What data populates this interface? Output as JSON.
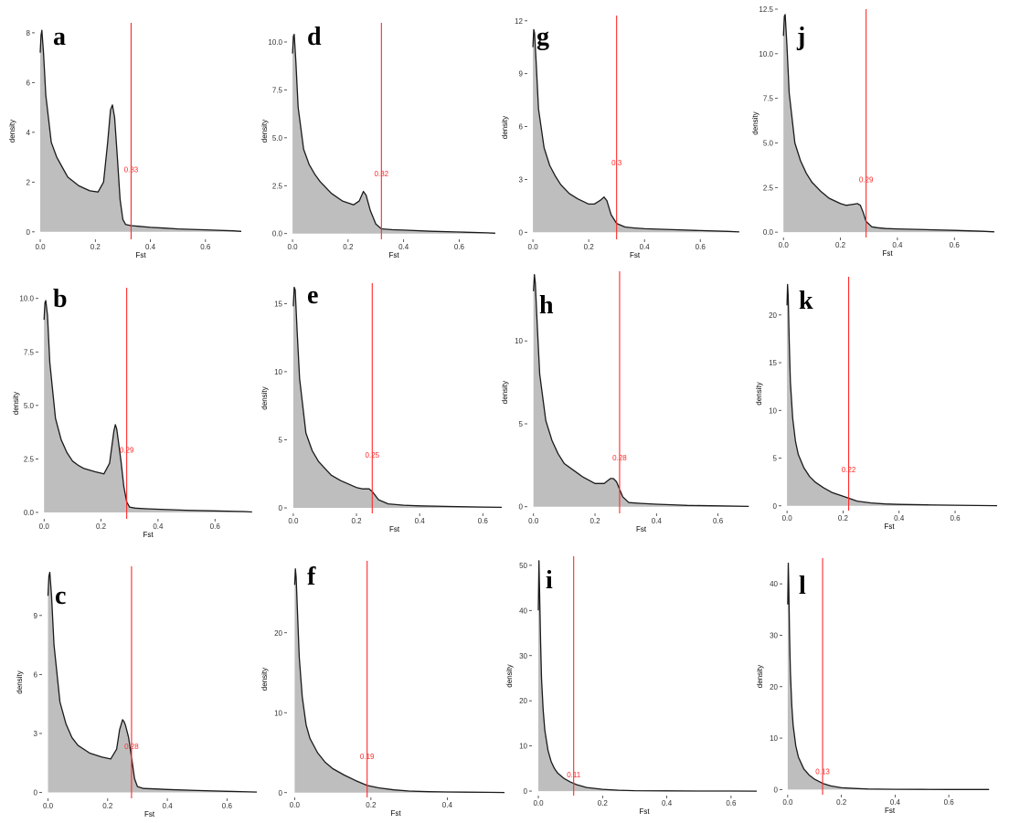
{
  "figure": {
    "background": "#ffffff",
    "fill_color": "#bebebe",
    "curve_color": "#1a1a1a",
    "threshold_color": "#ff2a2a"
  },
  "chart_data": [
    {
      "letter": "a",
      "type": "area",
      "xlabel": "Fst",
      "ylabel": "density",
      "xlim": [
        -0.02,
        0.75
      ],
      "ylim": [
        -0.3,
        8.4
      ],
      "x_ticks": [
        {
          "v": 0,
          "label": "0.0"
        },
        {
          "v": 0.2,
          "label": "0.2"
        },
        {
          "v": 0.4,
          "label": "0.4"
        },
        {
          "v": 0.6,
          "label": "0.6"
        }
      ],
      "y_ticks": [
        {
          "v": 0,
          "label": "0"
        },
        {
          "v": 2,
          "label": "2"
        },
        {
          "v": 4,
          "label": "4"
        },
        {
          "v": 6,
          "label": "6"
        },
        {
          "v": 8,
          "label": "8"
        }
      ],
      "threshold": 0.33,
      "threshold_label": "0.33",
      "label_y": 2.4,
      "x": [
        0,
        0.003,
        0.006,
        0.012,
        0.02,
        0.04,
        0.06,
        0.08,
        0.1,
        0.14,
        0.18,
        0.21,
        0.23,
        0.245,
        0.255,
        0.262,
        0.27,
        0.28,
        0.29,
        0.3,
        0.31,
        0.33,
        0.36,
        0.4,
        0.45,
        0.5,
        0.6,
        0.7,
        0.73
      ],
      "y": [
        7.2,
        7.9,
        8.1,
        7.2,
        5.5,
        3.6,
        3.0,
        2.6,
        2.2,
        1.85,
        1.65,
        1.6,
        2.0,
        3.6,
        4.9,
        5.1,
        4.6,
        3.0,
        1.3,
        0.5,
        0.3,
        0.25,
        0.22,
        0.18,
        0.15,
        0.12,
        0.08,
        0.04,
        0.02
      ]
    },
    {
      "letter": "b",
      "type": "area",
      "xlabel": "Fst",
      "ylabel": "density",
      "xlim": [
        -0.02,
        0.75
      ],
      "ylim": [
        -0.3,
        10.5
      ],
      "x_ticks": [
        {
          "v": 0,
          "label": "0.0"
        },
        {
          "v": 0.2,
          "label": "0.2"
        },
        {
          "v": 0.4,
          "label": "0.4"
        },
        {
          "v": 0.6,
          "label": "0.6"
        }
      ],
      "y_ticks": [
        {
          "v": 0,
          "label": "0.0"
        },
        {
          "v": 2.5,
          "label": "2.5"
        },
        {
          "v": 5,
          "label": "5.0"
        },
        {
          "v": 7.5,
          "label": "7.5"
        },
        {
          "v": 10,
          "label": "10.0"
        }
      ],
      "threshold": 0.29,
      "threshold_label": "0.29",
      "label_y": 2.8,
      "x": [
        0,
        0.003,
        0.006,
        0.012,
        0.02,
        0.04,
        0.06,
        0.08,
        0.1,
        0.12,
        0.14,
        0.18,
        0.21,
        0.23,
        0.245,
        0.25,
        0.255,
        0.26,
        0.27,
        0.28,
        0.29,
        0.3,
        0.32,
        0.36,
        0.4,
        0.5,
        0.6,
        0.7,
        0.73
      ],
      "y": [
        9.0,
        9.8,
        9.9,
        9.2,
        7.0,
        4.4,
        3.4,
        2.8,
        2.4,
        2.2,
        2.05,
        1.9,
        1.8,
        2.3,
        3.8,
        4.1,
        3.9,
        3.4,
        2.4,
        1.2,
        0.5,
        0.25,
        0.2,
        0.17,
        0.15,
        0.1,
        0.07,
        0.04,
        0.02
      ]
    },
    {
      "letter": "c",
      "type": "area",
      "xlabel": "Fst",
      "ylabel": "density",
      "xlim": [
        -0.02,
        0.7
      ],
      "ylim": [
        -0.3,
        11.5
      ],
      "x_ticks": [
        {
          "v": 0,
          "label": "0.0"
        },
        {
          "v": 0.2,
          "label": "0.2"
        },
        {
          "v": 0.4,
          "label": "0.4"
        },
        {
          "v": 0.6,
          "label": "0.6"
        }
      ],
      "y_ticks": [
        {
          "v": 0,
          "label": "0"
        },
        {
          "v": 3,
          "label": "3"
        },
        {
          "v": 6,
          "label": "6"
        },
        {
          "v": 9,
          "label": "9"
        }
      ],
      "threshold": 0.28,
      "threshold_label": "0.28",
      "label_y": 2.2,
      "x": [
        0,
        0.003,
        0.006,
        0.012,
        0.02,
        0.04,
        0.06,
        0.08,
        0.1,
        0.14,
        0.18,
        0.21,
        0.23,
        0.24,
        0.25,
        0.255,
        0.26,
        0.27,
        0.28,
        0.29,
        0.3,
        0.32,
        0.36,
        0.4,
        0.5,
        0.6,
        0.7
      ],
      "y": [
        10.0,
        11.0,
        11.2,
        10.0,
        7.5,
        4.6,
        3.5,
        2.8,
        2.4,
        2.0,
        1.8,
        1.7,
        2.2,
        3.2,
        3.7,
        3.6,
        3.4,
        2.8,
        1.8,
        0.7,
        0.3,
        0.2,
        0.18,
        0.15,
        0.1,
        0.06,
        0.02
      ]
    },
    {
      "letter": "d",
      "type": "area",
      "xlabel": "Fst",
      "ylabel": "density",
      "xlim": [
        -0.02,
        0.75
      ],
      "ylim": [
        -0.3,
        11.0
      ],
      "x_ticks": [
        {
          "v": 0,
          "label": "0.0"
        },
        {
          "v": 0.2,
          "label": "0.2"
        },
        {
          "v": 0.4,
          "label": "0.4"
        },
        {
          "v": 0.6,
          "label": "0.6"
        }
      ],
      "y_ticks": [
        {
          "v": 0,
          "label": "0.0"
        },
        {
          "v": 2.5,
          "label": "2.5"
        },
        {
          "v": 5,
          "label": "5.0"
        },
        {
          "v": 7.5,
          "label": "7.5"
        },
        {
          "v": 10,
          "label": "10.0"
        }
      ],
      "threshold": 0.32,
      "threshold_label": "0.32",
      "label_y": 3.0,
      "x": [
        0,
        0.003,
        0.006,
        0.012,
        0.02,
        0.04,
        0.06,
        0.08,
        0.1,
        0.14,
        0.18,
        0.22,
        0.24,
        0.255,
        0.265,
        0.28,
        0.3,
        0.32,
        0.36,
        0.4,
        0.5,
        0.6,
        0.7,
        0.73
      ],
      "y": [
        9.4,
        10.3,
        10.4,
        9.0,
        6.6,
        4.4,
        3.6,
        3.1,
        2.7,
        2.1,
        1.7,
        1.5,
        1.7,
        2.2,
        2.0,
        1.2,
        0.5,
        0.25,
        0.2,
        0.18,
        0.12,
        0.08,
        0.04,
        0.02
      ]
    },
    {
      "letter": "e",
      "type": "area",
      "xlabel": "Fst",
      "ylabel": "density",
      "xlim": [
        -0.02,
        0.66
      ],
      "ylim": [
        -0.4,
        16.5
      ],
      "x_ticks": [
        {
          "v": 0,
          "label": "0.0"
        },
        {
          "v": 0.2,
          "label": "0.2"
        },
        {
          "v": 0.4,
          "label": "0.4"
        },
        {
          "v": 0.6,
          "label": "0.6"
        }
      ],
      "y_ticks": [
        {
          "v": 0,
          "label": "0"
        },
        {
          "v": 5,
          "label": "5"
        },
        {
          "v": 10,
          "label": "10"
        },
        {
          "v": 15,
          "label": "15"
        }
      ],
      "threshold": 0.25,
      "threshold_label": "0.25",
      "label_y": 3.7,
      "x": [
        0,
        0.003,
        0.006,
        0.012,
        0.02,
        0.04,
        0.06,
        0.08,
        0.1,
        0.12,
        0.15,
        0.18,
        0.2,
        0.22,
        0.24,
        0.25,
        0.27,
        0.3,
        0.35,
        0.4,
        0.5,
        0.6,
        0.66
      ],
      "y": [
        14.8,
        16.2,
        16.0,
        13.0,
        9.5,
        5.5,
        4.2,
        3.4,
        2.9,
        2.4,
        2.0,
        1.7,
        1.5,
        1.4,
        1.4,
        1.2,
        0.6,
        0.3,
        0.2,
        0.15,
        0.1,
        0.06,
        0.04
      ]
    },
    {
      "letter": "f",
      "type": "area",
      "xlabel": "Fst",
      "ylabel": "density",
      "xlim": [
        -0.02,
        0.55
      ],
      "ylim": [
        -0.6,
        29.0
      ],
      "x_ticks": [
        {
          "v": 0,
          "label": "0.0"
        },
        {
          "v": 0.2,
          "label": "0.2"
        },
        {
          "v": 0.4,
          "label": "0.4"
        }
      ],
      "y_ticks": [
        {
          "v": 0,
          "label": "0"
        },
        {
          "v": 10,
          "label": "10"
        },
        {
          "v": 20,
          "label": "20"
        }
      ],
      "threshold": 0.19,
      "threshold_label": "0.19",
      "label_y": 4.2,
      "x": [
        0,
        0.002,
        0.004,
        0.008,
        0.012,
        0.02,
        0.03,
        0.04,
        0.06,
        0.08,
        0.1,
        0.13,
        0.16,
        0.19,
        0.22,
        0.26,
        0.3,
        0.35,
        0.4,
        0.5,
        0.55
      ],
      "y": [
        26.0,
        28.0,
        27.0,
        22.0,
        17.0,
        12.0,
        8.5,
        6.8,
        5.0,
        3.8,
        3.0,
        2.2,
        1.5,
        0.9,
        0.6,
        0.35,
        0.2,
        0.12,
        0.08,
        0.04,
        0.02
      ]
    },
    {
      "letter": "g",
      "type": "area",
      "xlabel": "Fst",
      "ylabel": "density",
      "xlim": [
        -0.02,
        0.75
      ],
      "ylim": [
        -0.4,
        12.3
      ],
      "x_ticks": [
        {
          "v": 0,
          "label": "0.0"
        },
        {
          "v": 0.2,
          "label": "0.2"
        },
        {
          "v": 0.4,
          "label": "0.4"
        },
        {
          "v": 0.6,
          "label": "0.6"
        }
      ],
      "y_ticks": [
        {
          "v": 0,
          "label": "0"
        },
        {
          "v": 3,
          "label": "3"
        },
        {
          "v": 6,
          "label": "6"
        },
        {
          "v": 9,
          "label": "9"
        },
        {
          "v": 12,
          "label": "12"
        }
      ],
      "threshold": 0.3,
      "threshold_label": "0.3",
      "label_y": 3.8,
      "x": [
        0,
        0.003,
        0.006,
        0.012,
        0.02,
        0.04,
        0.06,
        0.08,
        0.1,
        0.13,
        0.16,
        0.2,
        0.22,
        0.24,
        0.255,
        0.265,
        0.28,
        0.3,
        0.33,
        0.36,
        0.4,
        0.5,
        0.6,
        0.7,
        0.74
      ],
      "y": [
        10.5,
        11.5,
        11.3,
        9.5,
        7.0,
        4.8,
        3.8,
        3.2,
        2.7,
        2.2,
        1.9,
        1.6,
        1.6,
        1.8,
        2.0,
        1.8,
        1.0,
        0.5,
        0.3,
        0.25,
        0.2,
        0.15,
        0.1,
        0.05,
        0.02
      ]
    },
    {
      "letter": "h",
      "type": "area",
      "xlabel": "Fst",
      "ylabel": "density",
      "xlim": [
        -0.02,
        0.72
      ],
      "ylim": [
        -0.4,
        14.2
      ],
      "x_ticks": [
        {
          "v": 0,
          "label": "0.0"
        },
        {
          "v": 0.2,
          "label": "0.2"
        },
        {
          "v": 0.4,
          "label": "0.4"
        },
        {
          "v": 0.6,
          "label": "0.6"
        }
      ],
      "y_ticks": [
        {
          "v": 0,
          "label": "0"
        },
        {
          "v": 5,
          "label": "5"
        },
        {
          "v": 10,
          "label": "10"
        }
      ],
      "threshold": 0.28,
      "threshold_label": "0.28",
      "label_y": 2.8,
      "x": [
        0,
        0.003,
        0.006,
        0.012,
        0.02,
        0.04,
        0.06,
        0.08,
        0.1,
        0.13,
        0.16,
        0.2,
        0.23,
        0.25,
        0.26,
        0.27,
        0.29,
        0.31,
        0.35,
        0.4,
        0.45,
        0.5,
        0.6,
        0.7
      ],
      "y": [
        13.0,
        14.0,
        13.5,
        11.0,
        8.0,
        5.2,
        4.0,
        3.2,
        2.6,
        2.2,
        1.8,
        1.4,
        1.4,
        1.7,
        1.7,
        1.5,
        0.6,
        0.25,
        0.2,
        0.15,
        0.12,
        0.08,
        0.05,
        0.02
      ]
    },
    {
      "letter": "i",
      "type": "area",
      "xlabel": "Fst",
      "ylabel": "density",
      "xlim": [
        -0.02,
        0.68
      ],
      "ylim": [
        -1.0,
        52.0
      ],
      "x_ticks": [
        {
          "v": 0,
          "label": "0.0"
        },
        {
          "v": 0.2,
          "label": "0.2"
        },
        {
          "v": 0.4,
          "label": "0.4"
        },
        {
          "v": 0.6,
          "label": "0.6"
        }
      ],
      "y_ticks": [
        {
          "v": 0,
          "label": "0"
        },
        {
          "v": 10,
          "label": "10"
        },
        {
          "v": 20,
          "label": "20"
        },
        {
          "v": 30,
          "label": "30"
        },
        {
          "v": 40,
          "label": "40"
        },
        {
          "v": 50,
          "label": "50"
        }
      ],
      "threshold": 0.11,
      "threshold_label": "0.11",
      "label_y": 3.0,
      "x": [
        0,
        0.002,
        0.004,
        0.007,
        0.01,
        0.015,
        0.02,
        0.03,
        0.04,
        0.05,
        0.06,
        0.08,
        0.1,
        0.12,
        0.15,
        0.2,
        0.25,
        0.3,
        0.4,
        0.5,
        0.6,
        0.68
      ],
      "y": [
        40.0,
        51.0,
        44.0,
        33.0,
        25.0,
        18.0,
        13.5,
        9.0,
        6.5,
        5.0,
        4.0,
        2.8,
        2.0,
        1.4,
        0.8,
        0.4,
        0.2,
        0.1,
        0.05,
        0.02,
        0.01,
        0.0
      ]
    },
    {
      "letter": "j",
      "type": "area",
      "xlabel": "Fst",
      "ylabel": "density",
      "xlim": [
        -0.02,
        0.75
      ],
      "ylim": [
        -0.3,
        12.5
      ],
      "x_ticks": [
        {
          "v": 0,
          "label": "0.0"
        },
        {
          "v": 0.2,
          "label": "0.2"
        },
        {
          "v": 0.4,
          "label": "0.4"
        },
        {
          "v": 0.6,
          "label": "0.6"
        }
      ],
      "y_ticks": [
        {
          "v": 0,
          "label": "0.0"
        },
        {
          "v": 2.5,
          "label": "2.5"
        },
        {
          "v": 5,
          "label": "5.0"
        },
        {
          "v": 7.5,
          "label": "7.5"
        },
        {
          "v": 10,
          "label": "10.0"
        },
        {
          "v": 12.5,
          "label": "12.5"
        }
      ],
      "threshold": 0.29,
      "threshold_label": "0.29",
      "label_y": 2.8,
      "x": [
        0,
        0.003,
        0.006,
        0.012,
        0.02,
        0.04,
        0.06,
        0.08,
        0.1,
        0.13,
        0.16,
        0.2,
        0.22,
        0.24,
        0.26,
        0.27,
        0.28,
        0.29,
        0.31,
        0.33,
        0.36,
        0.4,
        0.5,
        0.6,
        0.7,
        0.74
      ],
      "y": [
        11.0,
        12.1,
        12.2,
        10.5,
        7.8,
        5.0,
        4.0,
        3.3,
        2.8,
        2.3,
        1.9,
        1.6,
        1.5,
        1.55,
        1.6,
        1.5,
        1.1,
        0.6,
        0.3,
        0.25,
        0.2,
        0.18,
        0.14,
        0.1,
        0.05,
        0.02
      ]
    },
    {
      "letter": "k",
      "type": "area",
      "xlabel": "Fst",
      "ylabel": "density",
      "xlim": [
        -0.02,
        0.75
      ],
      "ylim": [
        -0.5,
        24.0
      ],
      "x_ticks": [
        {
          "v": 0,
          "label": "0.0"
        },
        {
          "v": 0.2,
          "label": "0.2"
        },
        {
          "v": 0.4,
          "label": "0.4"
        },
        {
          "v": 0.6,
          "label": "0.6"
        }
      ],
      "y_ticks": [
        {
          "v": 0,
          "label": "0"
        },
        {
          "v": 5,
          "label": "5"
        },
        {
          "v": 10,
          "label": "10"
        },
        {
          "v": 15,
          "label": "15"
        },
        {
          "v": 20,
          "label": "20"
        }
      ],
      "threshold": 0.22,
      "threshold_label": "0.22",
      "label_y": 3.5,
      "x": [
        0,
        0.002,
        0.004,
        0.008,
        0.012,
        0.02,
        0.03,
        0.04,
        0.06,
        0.08,
        0.1,
        0.13,
        0.16,
        0.2,
        0.22,
        0.25,
        0.3,
        0.35,
        0.4,
        0.5,
        0.6,
        0.75
      ],
      "y": [
        21.0,
        23.2,
        22.0,
        17.0,
        13.0,
        9.2,
        6.8,
        5.4,
        4.0,
        3.1,
        2.5,
        1.9,
        1.4,
        1.0,
        0.8,
        0.5,
        0.3,
        0.2,
        0.15,
        0.1,
        0.06,
        0.02
      ]
    },
    {
      "letter": "l",
      "type": "area",
      "xlabel": "Fst",
      "ylabel": "density",
      "xlim": [
        -0.02,
        0.78
      ],
      "ylim": [
        -1.0,
        45.0
      ],
      "x_ticks": [
        {
          "v": 0,
          "label": "0.0"
        },
        {
          "v": 0.2,
          "label": "0.2"
        },
        {
          "v": 0.4,
          "label": "0.4"
        },
        {
          "v": 0.6,
          "label": "0.6"
        }
      ],
      "y_ticks": [
        {
          "v": 0,
          "label": "0"
        },
        {
          "v": 10,
          "label": "10"
        },
        {
          "v": 20,
          "label": "20"
        },
        {
          "v": 30,
          "label": "30"
        },
        {
          "v": 40,
          "label": "40"
        }
      ],
      "threshold": 0.13,
      "threshold_label": "0.13",
      "label_y": 3.0,
      "x": [
        0,
        0.002,
        0.004,
        0.007,
        0.01,
        0.015,
        0.02,
        0.03,
        0.04,
        0.06,
        0.08,
        0.1,
        0.13,
        0.16,
        0.2,
        0.25,
        0.3,
        0.4,
        0.5,
        0.6,
        0.75
      ],
      "y": [
        36.0,
        44.0,
        40.0,
        30.0,
        23.0,
        16.5,
        12.5,
        8.5,
        6.3,
        4.0,
        2.8,
        2.0,
        1.2,
        0.7,
        0.35,
        0.2,
        0.1,
        0.05,
        0.03,
        0.02,
        0.01
      ]
    }
  ]
}
